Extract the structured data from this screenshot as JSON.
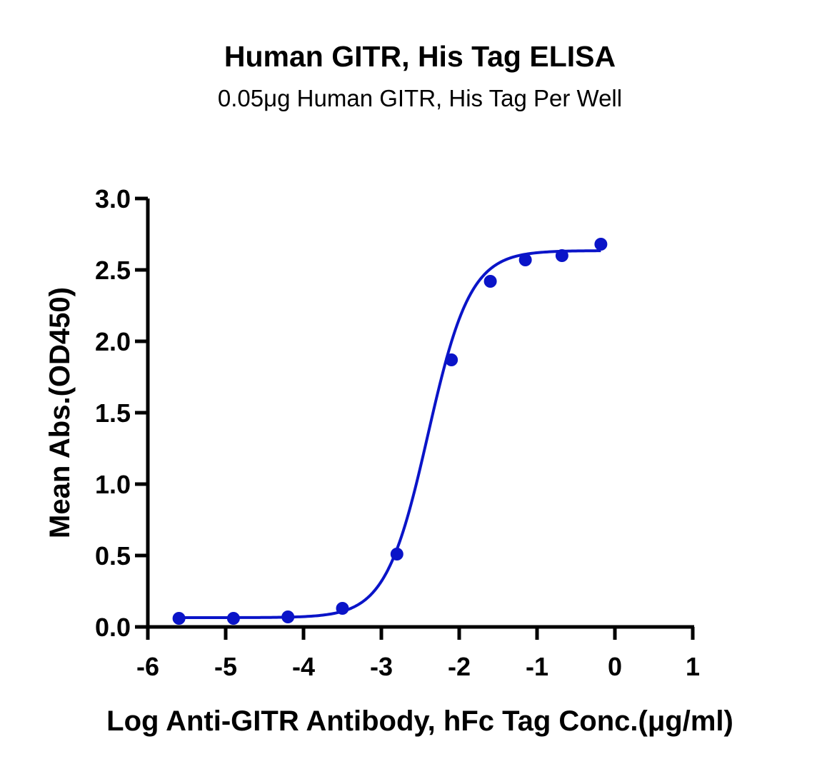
{
  "chart_data": {
    "type": "scatter",
    "title": "Human GITR, His Tag ELISA",
    "subtitle": "0.05μg Human GITR, His Tag Per Well",
    "xlabel": "Log Anti-GITR Antibody, hFc Tag Conc.(μg/ml)",
    "ylabel": "Mean Abs.(OD450)",
    "xlim": [
      -6,
      1
    ],
    "ylim": [
      0,
      3.0
    ],
    "x_ticks": [
      -6,
      -5,
      -4,
      -3,
      -2,
      -1,
      0,
      1
    ],
    "x_tick_labels": [
      "-6",
      "-5",
      "-4",
      "-3",
      "-2",
      "-1",
      "0",
      "1"
    ],
    "y_ticks": [
      0,
      0.5,
      1.0,
      1.5,
      2.0,
      2.5,
      3.0
    ],
    "y_tick_labels": [
      "0.0",
      "0.5",
      "1.0",
      "1.5",
      "2.0",
      "2.5",
      "3.0"
    ],
    "grid": false,
    "series": [
      {
        "color": "#0a14c8",
        "points": [
          {
            "x": -5.6,
            "y": 0.06
          },
          {
            "x": -4.9,
            "y": 0.06
          },
          {
            "x": -4.2,
            "y": 0.07
          },
          {
            "x": -3.5,
            "y": 0.13
          },
          {
            "x": -2.8,
            "y": 0.51
          },
          {
            "x": -2.1,
            "y": 1.87
          },
          {
            "x": -1.6,
            "y": 2.42
          },
          {
            "x": -1.15,
            "y": 2.57
          },
          {
            "x": -0.68,
            "y": 2.6
          },
          {
            "x": -0.18,
            "y": 2.68
          }
        ],
        "fit": {
          "model": "four-parameter logistic",
          "bottom": 0.065,
          "top": 2.635,
          "logEC50": -2.4,
          "hill": 1.6,
          "x_range": [
            -5.6,
            -0.18
          ]
        }
      }
    ]
  }
}
